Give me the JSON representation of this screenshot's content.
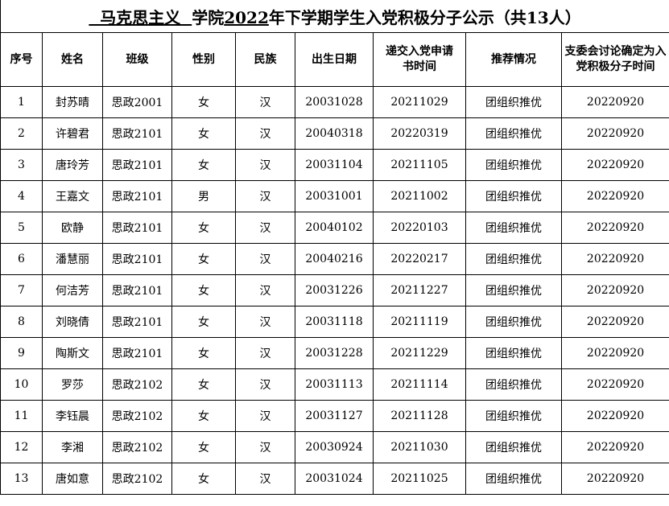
{
  "title": {
    "part1": "  马克思主义  ",
    "part2": "学院",
    "part3": "2022",
    "part4": "年下学期学生入党积极分子公示（共13人）"
  },
  "headers": [
    "序号",
    "姓名",
    "班级",
    "性别",
    "民族",
    "出生日期",
    "递交入党申请书时间",
    "推荐情况",
    "支委会讨论确定为入党积极分子时间"
  ],
  "rows": [
    [
      "1",
      "封苏晴",
      "思政2001",
      "女",
      "汉",
      "20031028",
      "20211029",
      "团组织推优",
      "20220920"
    ],
    [
      "2",
      "许碧君",
      "思政2101",
      "女",
      "汉",
      "20040318",
      "20220319",
      "团组织推优",
      "20220920"
    ],
    [
      "3",
      "唐玲芳",
      "思政2101",
      "女",
      "汉",
      "20031104",
      "20211105",
      "团组织推优",
      "20220920"
    ],
    [
      "4",
      "王嘉文",
      "思政2101",
      "男",
      "汉",
      "20031001",
      "20211002",
      "团组织推优",
      "20220920"
    ],
    [
      "5",
      "欧静",
      "思政2101",
      "女",
      "汉",
      "20040102",
      "20220103",
      "团组织推优",
      "20220920"
    ],
    [
      "6",
      "潘慧丽",
      "思政2101",
      "女",
      "汉",
      "20040216",
      "20220217",
      "团组织推优",
      "20220920"
    ],
    [
      "7",
      "何洁芳",
      "思政2101",
      "女",
      "汉",
      "20031226",
      "20211227",
      "团组织推优",
      "20220920"
    ],
    [
      "8",
      "刘晓倩",
      "思政2101",
      "女",
      "汉",
      "20031118",
      "20211119",
      "团组织推优",
      "20220920"
    ],
    [
      "9",
      "陶斯文",
      "思政2101",
      "女",
      "汉",
      "20031228",
      "20211229",
      "团组织推优",
      "20220920"
    ],
    [
      "10",
      "罗莎",
      "思政2102",
      "女",
      "汉",
      "20031113",
      "20211114",
      "团组织推优",
      "20220920"
    ],
    [
      "11",
      "李钰晨",
      "思政2102",
      "女",
      "汉",
      "20031127",
      "20211128",
      "团组织推优",
      "20220920"
    ],
    [
      "12",
      "李湘",
      "思政2102",
      "女",
      "汉",
      "20030924",
      "20211030",
      "团组织推优",
      "20220920"
    ],
    [
      "13",
      "唐如意",
      "思政2102",
      "女",
      "汉",
      "20031024",
      "20211025",
      "团组织推优",
      "20220920"
    ]
  ]
}
